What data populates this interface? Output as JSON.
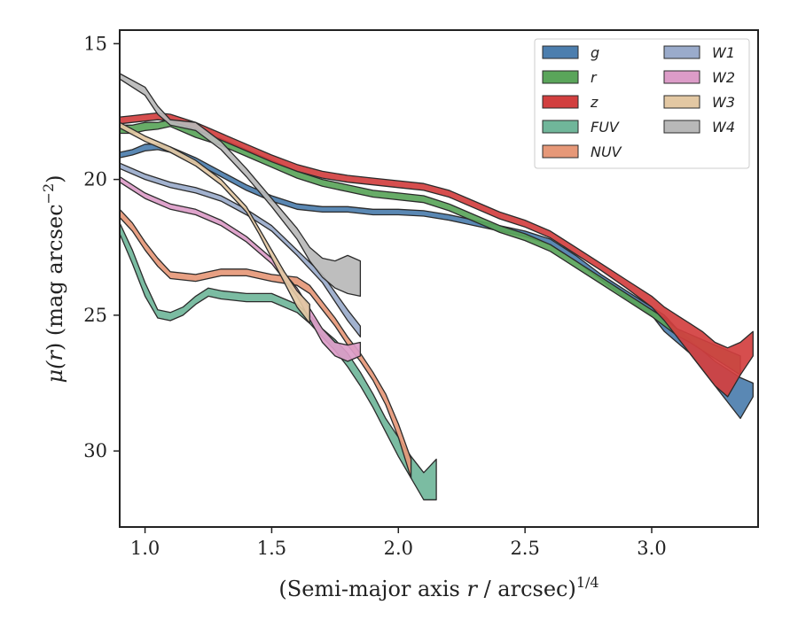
{
  "chart_data": {
    "type": "area",
    "title": "",
    "xlabel": {
      "main": "(Semi-major axis ",
      "var": "r",
      "rest": " / arcsec)",
      "sup": "1/4"
    },
    "ylabel": {
      "mu": "μ(",
      "var": "r",
      "rest": ") (mag arcsec",
      "sup": "−2",
      "close": ")"
    },
    "xlim": [
      0.9,
      3.42
    ],
    "ylim": [
      32.8,
      14.5
    ],
    "y_inverted": true,
    "xticks": [
      1.0,
      1.5,
      2.0,
      2.5,
      3.0
    ],
    "xtick_labels": [
      "1.0",
      "1.5",
      "2.0",
      "2.5",
      "3.0"
    ],
    "yticks": [
      15,
      20,
      25,
      30
    ],
    "ytick_labels": [
      "15",
      "20",
      "25",
      "30"
    ],
    "grid": false,
    "legend_position": "top-right",
    "series": [
      {
        "name": "g",
        "color": "#4c7eae",
        "x": [
          0.9,
          0.95,
          1.0,
          1.05,
          1.1,
          1.2,
          1.3,
          1.4,
          1.5,
          1.6,
          1.7,
          1.8,
          1.9,
          2.0,
          2.1,
          2.2,
          2.3,
          2.4,
          2.5,
          2.6,
          2.7,
          2.8,
          2.9,
          3.0,
          3.05,
          3.1,
          3.15,
          3.2,
          3.25,
          3.3,
          3.35,
          3.4
        ],
        "y_upper": [
          19.0,
          18.9,
          18.7,
          18.7,
          18.8,
          19.2,
          19.7,
          20.2,
          20.6,
          20.9,
          21.0,
          21.0,
          21.1,
          21.1,
          21.15,
          21.3,
          21.5,
          21.7,
          21.9,
          22.2,
          22.8,
          23.5,
          24.1,
          24.7,
          25.0,
          25.5,
          25.9,
          26.3,
          26.7,
          27.0,
          27.3,
          27.5
        ],
        "y_lower": [
          19.2,
          19.1,
          18.95,
          18.9,
          19.0,
          19.4,
          19.9,
          20.4,
          20.8,
          21.1,
          21.2,
          21.2,
          21.3,
          21.3,
          21.35,
          21.5,
          21.7,
          21.9,
          22.1,
          22.4,
          23.0,
          23.7,
          24.4,
          25.0,
          25.6,
          26.0,
          26.4,
          27.0,
          27.6,
          28.2,
          28.8,
          28.0
        ]
      },
      {
        "name": "r",
        "color": "#5aa55a",
        "x": [
          0.9,
          0.95,
          1.0,
          1.05,
          1.1,
          1.2,
          1.3,
          1.4,
          1.5,
          1.6,
          1.7,
          1.8,
          1.9,
          2.0,
          2.1,
          2.2,
          2.3,
          2.4,
          2.5,
          2.6,
          2.7,
          2.8,
          2.9,
          3.0,
          3.05,
          3.1,
          3.15,
          3.2,
          3.25,
          3.3,
          3.35
        ],
        "y_upper": [
          18.0,
          18.0,
          17.9,
          17.9,
          17.8,
          18.2,
          18.5,
          18.9,
          19.3,
          19.7,
          20.0,
          20.2,
          20.4,
          20.5,
          20.6,
          20.9,
          21.3,
          21.7,
          22.0,
          22.4,
          23.0,
          23.6,
          24.2,
          24.8,
          25.1,
          25.5,
          25.7,
          25.9,
          26.1,
          26.3,
          26.5
        ],
        "y_lower": [
          18.3,
          18.3,
          18.2,
          18.15,
          18.05,
          18.45,
          18.75,
          19.15,
          19.55,
          19.95,
          20.25,
          20.45,
          20.65,
          20.75,
          20.85,
          21.15,
          21.55,
          21.95,
          22.25,
          22.65,
          23.25,
          23.85,
          24.45,
          25.05,
          25.4,
          25.75,
          26.0,
          26.3,
          26.6,
          26.9,
          27.2
        ]
      },
      {
        "name": "z",
        "color": "#d23f3f",
        "x": [
          0.9,
          0.95,
          1.0,
          1.05,
          1.1,
          1.2,
          1.3,
          1.4,
          1.5,
          1.6,
          1.7,
          1.8,
          1.9,
          2.0,
          2.1,
          2.2,
          2.3,
          2.4,
          2.5,
          2.6,
          2.7,
          2.8,
          2.9,
          3.0,
          3.05,
          3.1,
          3.15,
          3.2,
          3.25,
          3.3,
          3.35,
          3.4
        ],
        "y_upper": [
          17.7,
          17.65,
          17.6,
          17.55,
          17.6,
          17.9,
          18.3,
          18.7,
          19.1,
          19.45,
          19.7,
          19.85,
          19.95,
          20.05,
          20.15,
          20.4,
          20.8,
          21.2,
          21.5,
          21.9,
          22.5,
          23.1,
          23.7,
          24.3,
          24.7,
          25.0,
          25.3,
          25.6,
          26.0,
          26.2,
          26.0,
          25.6
        ],
        "y_lower": [
          17.95,
          17.9,
          17.85,
          17.8,
          17.85,
          18.15,
          18.55,
          18.95,
          19.35,
          19.7,
          19.95,
          20.1,
          20.2,
          20.3,
          20.4,
          20.65,
          21.05,
          21.45,
          21.75,
          22.15,
          22.75,
          23.35,
          24.0,
          24.7,
          25.2,
          25.8,
          26.4,
          27.0,
          27.6,
          28.0,
          27.2,
          26.5
        ]
      },
      {
        "name": "FUV",
        "color": "#70b69a",
        "x": [
          0.9,
          0.95,
          1.0,
          1.05,
          1.1,
          1.15,
          1.2,
          1.25,
          1.3,
          1.4,
          1.5,
          1.6,
          1.65,
          1.7,
          1.75,
          1.8,
          1.85,
          1.9,
          1.95,
          2.0,
          2.05,
          2.1,
          2.15
        ],
        "y_upper": [
          21.6,
          22.6,
          23.8,
          24.8,
          24.9,
          24.7,
          24.3,
          24.0,
          24.1,
          24.2,
          24.2,
          24.6,
          25.0,
          25.5,
          25.9,
          26.4,
          27.1,
          27.9,
          28.8,
          29.5,
          30.2,
          30.8,
          30.3
        ],
        "y_lower": [
          22.0,
          23.1,
          24.3,
          25.1,
          25.2,
          25.0,
          24.6,
          24.3,
          24.4,
          24.5,
          24.5,
          24.9,
          25.3,
          25.8,
          26.3,
          26.9,
          27.6,
          28.4,
          29.3,
          30.2,
          31.0,
          31.8,
          31.8
        ]
      },
      {
        "name": "NUV",
        "color": "#e69878",
        "x": [
          0.9,
          0.95,
          1.0,
          1.05,
          1.1,
          1.2,
          1.3,
          1.4,
          1.5,
          1.6,
          1.65,
          1.7,
          1.75,
          1.8,
          1.85,
          1.9,
          1.95,
          2.0,
          2.05
        ],
        "y_upper": [
          21.1,
          21.6,
          22.3,
          22.9,
          23.4,
          23.5,
          23.3,
          23.3,
          23.5,
          23.6,
          23.9,
          24.5,
          25.1,
          25.8,
          26.4,
          27.1,
          27.9,
          29.0,
          30.3
        ],
        "y_lower": [
          21.4,
          21.9,
          22.6,
          23.2,
          23.65,
          23.75,
          23.55,
          23.55,
          23.75,
          23.9,
          24.2,
          24.8,
          25.4,
          26.1,
          26.7,
          27.4,
          28.3,
          29.5,
          31.0
        ]
      },
      {
        "name": "W1",
        "color": "#9aabcb",
        "x": [
          0.9,
          1.0,
          1.1,
          1.2,
          1.3,
          1.4,
          1.5,
          1.6,
          1.7,
          1.8,
          1.85
        ],
        "y_upper": [
          19.4,
          19.8,
          20.1,
          20.3,
          20.6,
          21.1,
          21.7,
          22.6,
          23.5,
          24.8,
          25.4
        ],
        "y_lower": [
          19.6,
          20.0,
          20.3,
          20.5,
          20.8,
          21.3,
          21.9,
          22.8,
          23.8,
          25.2,
          25.8
        ]
      },
      {
        "name": "W2",
        "color": "#dc9cc8",
        "x": [
          0.9,
          1.0,
          1.1,
          1.2,
          1.3,
          1.4,
          1.5,
          1.6,
          1.7,
          1.75,
          1.8,
          1.85
        ],
        "y_upper": [
          19.9,
          20.5,
          20.9,
          21.1,
          21.5,
          22.1,
          22.9,
          24.0,
          25.5,
          26.0,
          26.1,
          26.0
        ],
        "y_lower": [
          20.1,
          20.7,
          21.1,
          21.3,
          21.7,
          22.3,
          23.1,
          24.3,
          26.0,
          26.5,
          26.7,
          26.5
        ]
      },
      {
        "name": "W3",
        "color": "#e3c8a3",
        "x": [
          0.9,
          1.0,
          1.1,
          1.2,
          1.3,
          1.4,
          1.45,
          1.5,
          1.55,
          1.6,
          1.65
        ],
        "y_upper": [
          17.9,
          18.4,
          18.8,
          19.3,
          20.0,
          21.0,
          21.8,
          22.6,
          23.4,
          24.1,
          24.6
        ],
        "y_lower": [
          18.1,
          18.6,
          19.0,
          19.5,
          20.2,
          21.2,
          22.0,
          22.9,
          23.8,
          24.7,
          25.3
        ]
      },
      {
        "name": "W4",
        "color": "#b8b8b8",
        "x": [
          0.9,
          1.0,
          1.05,
          1.1,
          1.2,
          1.3,
          1.4,
          1.5,
          1.6,
          1.65,
          1.7,
          1.75,
          1.8,
          1.85
        ],
        "y_upper": [
          16.1,
          16.6,
          17.3,
          17.8,
          17.9,
          18.6,
          19.6,
          20.7,
          21.8,
          22.5,
          22.9,
          23.0,
          22.8,
          23.0
        ],
        "y_lower": [
          16.3,
          16.9,
          17.6,
          18.0,
          18.2,
          18.9,
          19.9,
          21.0,
          22.2,
          23.0,
          23.6,
          24.0,
          24.2,
          24.3
        ]
      }
    ]
  }
}
